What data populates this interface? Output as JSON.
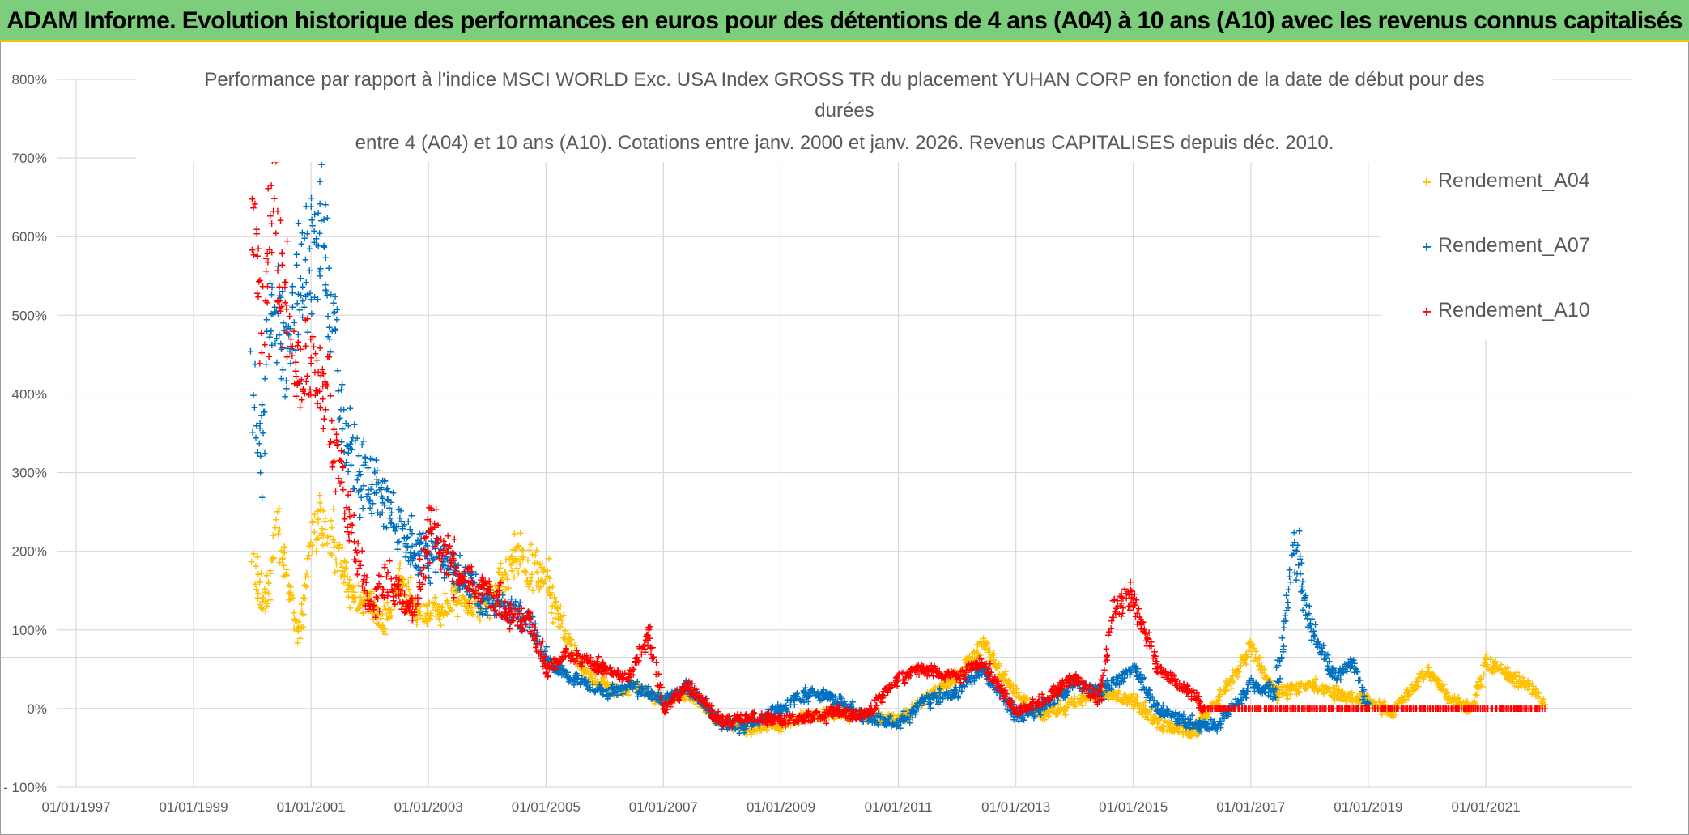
{
  "banner": {
    "title": "ADAM Informe. Evolution historique des performances en euros pour des détentions de 4 ans (A04) à 10 ans (A10) avec les revenus connus capitalisés",
    "background": "#7ccd7c",
    "border_color": "#e9c21c"
  },
  "chart_data": {
    "type": "scatter",
    "title_lines": [
      "Performance par rapport à l'indice MSCI WORLD Exc. USA Index GROSS TR  du placement YUHAN CORP en fonction de la date de début pour des",
      "durées",
      "entre 4 (A04) et 10 ans (A10). Cotations entre janv. 2000 et janv. 2026. Revenus CAPITALISES depuis déc. 2010."
    ],
    "xlabel": "",
    "ylabel": "",
    "x_ticks": [
      "01/01/1997",
      "01/01/1999",
      "01/01/2001",
      "01/01/2003",
      "01/01/2005",
      "01/01/2007",
      "01/01/2009",
      "01/01/2011",
      "01/01/2013",
      "01/01/2015",
      "01/01/2017",
      "01/01/2019",
      "01/01/2021"
    ],
    "xlim": [
      "01/01/1997",
      "01/01/2023"
    ],
    "y_ticks": [
      "- 100%",
      "0%",
      "100%",
      "200%",
      "300%",
      "400%",
      "500%",
      "600%",
      "700%",
      "800%"
    ],
    "ylim": [
      -100,
      800
    ],
    "y_unit": "%",
    "grid": true,
    "legend_position": "top-right",
    "marker": "+",
    "series": [
      {
        "name": "Rendement_A04",
        "color": "#ffc000",
        "x_range": [
          "2000-01-01",
          "2022-01-01"
        ],
        "points": [
          [
            "2000-01-01",
            180
          ],
          [
            "2000-03-15",
            130
          ],
          [
            "2000-06-01",
            230
          ],
          [
            "2000-08-01",
            170
          ],
          [
            "2000-10-15",
            90
          ],
          [
            "2001-01-01",
            210
          ],
          [
            "2001-03-01",
            240
          ],
          [
            "2001-06-01",
            200
          ],
          [
            "2001-09-01",
            150
          ],
          [
            "2002-01-01",
            130
          ],
          [
            "2002-04-01",
            110
          ],
          [
            "2002-07-01",
            160
          ],
          [
            "2002-10-01",
            120
          ],
          [
            "2003-01-01",
            120
          ],
          [
            "2003-04-01",
            130
          ],
          [
            "2003-07-01",
            150
          ],
          [
            "2003-10-01",
            130
          ],
          [
            "2004-01-01",
            140
          ],
          [
            "2004-04-01",
            160
          ],
          [
            "2004-07-01",
            190
          ],
          [
            "2004-10-01",
            180
          ],
          [
            "2005-01-01",
            160
          ],
          [
            "2005-04-01",
            110
          ],
          [
            "2005-07-01",
            70
          ],
          [
            "2005-10-01",
            40
          ],
          [
            "2006-01-01",
            30
          ],
          [
            "2006-04-01",
            20
          ],
          [
            "2006-07-01",
            30
          ],
          [
            "2006-10-01",
            20
          ],
          [
            "2007-01-01",
            10
          ],
          [
            "2007-06-01",
            20
          ],
          [
            "2008-01-01",
            -20
          ],
          [
            "2008-06-01",
            -25
          ],
          [
            "2009-01-01",
            -20
          ],
          [
            "2009-06-01",
            -10
          ],
          [
            "2010-01-01",
            -5
          ],
          [
            "2010-06-01",
            -10
          ],
          [
            "2011-01-01",
            -15
          ],
          [
            "2011-06-01",
            10
          ],
          [
            "2012-01-01",
            40
          ],
          [
            "2012-06-01",
            80
          ],
          [
            "2013-01-01",
            20
          ],
          [
            "2013-06-01",
            -10
          ],
          [
            "2014-01-01",
            10
          ],
          [
            "2014-06-01",
            20
          ],
          [
            "2015-01-01",
            10
          ],
          [
            "2015-06-01",
            -20
          ],
          [
            "2016-01-01",
            -30
          ],
          [
            "2016-06-01",
            10
          ],
          [
            "2017-01-01",
            80
          ],
          [
            "2017-06-01",
            20
          ],
          [
            "2018-01-01",
            30
          ],
          [
            "2018-06-01",
            20
          ],
          [
            "2019-01-01",
            10
          ],
          [
            "2019-06-01",
            -5
          ],
          [
            "2020-01-01",
            50
          ],
          [
            "2020-06-01",
            10
          ],
          [
            "2020-10-01",
            0
          ],
          [
            "2021-01-01",
            60
          ],
          [
            "2021-06-01",
            40
          ],
          [
            "2021-10-01",
            30
          ],
          [
            "2022-01-01",
            0
          ]
        ]
      },
      {
        "name": "Rendement_A07",
        "color": "#0070c0",
        "x_range": [
          "2000-01-01",
          "2019-01-01"
        ],
        "points": [
          [
            "2000-01-01",
            420
          ],
          [
            "2000-02-15",
            320
          ],
          [
            "2000-05-01",
            520
          ],
          [
            "2000-08-01",
            430
          ],
          [
            "2000-11-01",
            560
          ],
          [
            "2001-01-01",
            600
          ],
          [
            "2001-03-01",
            580
          ],
          [
            "2001-05-01",
            520
          ],
          [
            "2001-08-01",
            330
          ],
          [
            "2002-01-01",
            290
          ],
          [
            "2002-04-01",
            260
          ],
          [
            "2002-07-01",
            230
          ],
          [
            "2002-10-01",
            200
          ],
          [
            "2003-01-01",
            200
          ],
          [
            "2003-06-01",
            180
          ],
          [
            "2004-01-01",
            130
          ],
          [
            "2004-06-01",
            120
          ],
          [
            "2004-10-01",
            110
          ],
          [
            "2005-01-01",
            60
          ],
          [
            "2005-06-01",
            40
          ],
          [
            "2006-01-01",
            20
          ],
          [
            "2006-06-01",
            30
          ],
          [
            "2007-01-01",
            10
          ],
          [
            "2007-06-01",
            30
          ],
          [
            "2008-01-01",
            -20
          ],
          [
            "2008-06-01",
            -20
          ],
          [
            "2009-01-01",
            0
          ],
          [
            "2009-06-01",
            20
          ],
          [
            "2010-01-01",
            10
          ],
          [
            "2010-06-01",
            -10
          ],
          [
            "2011-01-01",
            -20
          ],
          [
            "2011-06-01",
            10
          ],
          [
            "2012-01-01",
            20
          ],
          [
            "2012-06-01",
            50
          ],
          [
            "2013-01-01",
            -10
          ],
          [
            "2013-06-01",
            0
          ],
          [
            "2014-01-01",
            30
          ],
          [
            "2014-06-01",
            20
          ],
          [
            "2015-01-01",
            50
          ],
          [
            "2015-06-01",
            0
          ],
          [
            "2016-01-01",
            -20
          ],
          [
            "2016-06-01",
            -20
          ],
          [
            "2017-01-01",
            30
          ],
          [
            "2017-06-01",
            20
          ],
          [
            "2017-10-01",
            200
          ],
          [
            "2018-01-01",
            100
          ],
          [
            "2018-06-01",
            40
          ],
          [
            "2018-10-01",
            60
          ],
          [
            "2019-01-01",
            0
          ]
        ]
      },
      {
        "name": "Rendement_A10",
        "color": "#ff0000",
        "x_range": [
          "2000-01-01",
          "2022-01-01"
        ],
        "points": [
          [
            "2000-01-01",
            640
          ],
          [
            "2000-03-01",
            480
          ],
          [
            "2000-05-01",
            690
          ],
          [
            "2000-07-01",
            520
          ],
          [
            "2000-10-01",
            420
          ],
          [
            "2001-01-01",
            460
          ],
          [
            "2001-04-01",
            380
          ],
          [
            "2001-07-01",
            320
          ],
          [
            "2001-09-01",
            220
          ],
          [
            "2002-01-01",
            130
          ],
          [
            "2002-04-01",
            170
          ],
          [
            "2002-07-01",
            140
          ],
          [
            "2002-10-01",
            120
          ],
          [
            "2003-01-01",
            230
          ],
          [
            "2003-06-01",
            180
          ],
          [
            "2004-01-01",
            150
          ],
          [
            "2004-06-01",
            120
          ],
          [
            "2004-10-01",
            110
          ],
          [
            "2005-01-01",
            50
          ],
          [
            "2005-06-01",
            70
          ],
          [
            "2006-01-01",
            50
          ],
          [
            "2006-06-01",
            40
          ],
          [
            "2006-10-01",
            100
          ],
          [
            "2007-01-01",
            0
          ],
          [
            "2007-06-01",
            30
          ],
          [
            "2008-01-01",
            -20
          ],
          [
            "2008-06-01",
            -10
          ],
          [
            "2009-01-01",
            -15
          ],
          [
            "2009-06-01",
            -10
          ],
          [
            "2010-01-01",
            -5
          ],
          [
            "2010-06-01",
            -10
          ],
          [
            "2011-01-01",
            40
          ],
          [
            "2011-06-01",
            50
          ],
          [
            "2012-01-01",
            40
          ],
          [
            "2012-06-01",
            60
          ],
          [
            "2013-01-01",
            -5
          ],
          [
            "2013-06-01",
            10
          ],
          [
            "2014-01-01",
            40
          ],
          [
            "2014-06-01",
            10
          ],
          [
            "2014-09-01",
            130
          ],
          [
            "2015-01-01",
            140
          ],
          [
            "2015-06-01",
            50
          ],
          [
            "2016-01-01",
            20
          ],
          [
            "2016-03-01",
            0
          ],
          [
            "2017-01-01",
            0
          ],
          [
            "2018-01-01",
            0
          ],
          [
            "2019-01-01",
            0
          ],
          [
            "2020-01-01",
            0
          ],
          [
            "2021-01-01",
            0
          ],
          [
            "2022-01-01",
            0
          ]
        ]
      }
    ]
  }
}
